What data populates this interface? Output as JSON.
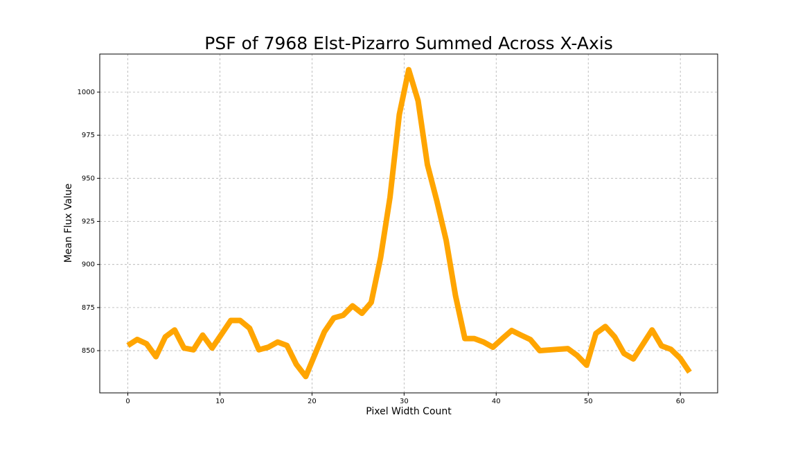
{
  "chart_data": {
    "type": "line",
    "title": "PSF of 7968 Elst-Pizarro Summed Across X-Axis",
    "x_label": "Pixel Width Count",
    "y_label": "Mean Flux Value",
    "x": [
      0,
      1.02,
      2.03,
      3.05,
      4.07,
      5.08,
      6.1,
      7.12,
      8.13,
      9.15,
      10.17,
      11.18,
      12.2,
      13.22,
      14.23,
      15.25,
      16.27,
      17.28,
      18.3,
      19.32,
      20.33,
      21.35,
      22.37,
      23.38,
      24.4,
      25.42,
      26.43,
      27.45,
      28.47,
      29.48,
      30.5,
      31.52,
      32.53,
      33.55,
      34.57,
      35.58,
      36.6,
      37.62,
      38.63,
      39.65,
      40.67,
      41.68,
      42.7,
      43.72,
      44.73,
      45.75,
      46.77,
      47.78,
      48.8,
      49.82,
      50.83,
      51.85,
      52.87,
      53.88,
      54.9,
      55.92,
      56.93,
      57.95,
      58.97,
      59.98,
      61
    ],
    "series": [
      {
        "color": "#ffa500",
        "values": [
          853,
          856.5,
          854,
          846.5,
          858,
          862,
          851.5,
          850.5,
          859,
          851.5,
          859.5,
          867.5,
          867.5,
          863,
          850.5,
          852,
          855,
          853,
          842,
          835,
          848,
          861,
          869,
          870.5,
          876,
          871.7,
          878,
          904,
          939,
          987,
          1013,
          995,
          958,
          937,
          914,
          882,
          857,
          857,
          855,
          852,
          857,
          861.7,
          859,
          856.4,
          850,
          850.4,
          850.8,
          851.2,
          847.2,
          841.6,
          860,
          864,
          858,
          848.4,
          845.2,
          853.6,
          862,
          852.8,
          850.8,
          845.6,
          837.5
        ]
      }
    ],
    "xlim": [
      -3.05,
      64.05
    ],
    "ylim": [
      825.5,
      1022.1
    ],
    "xticks": [
      0,
      10,
      20,
      30,
      40,
      50,
      60
    ],
    "yticks": [
      850,
      875,
      900,
      925,
      950,
      975,
      1000
    ],
    "grid": true
  }
}
